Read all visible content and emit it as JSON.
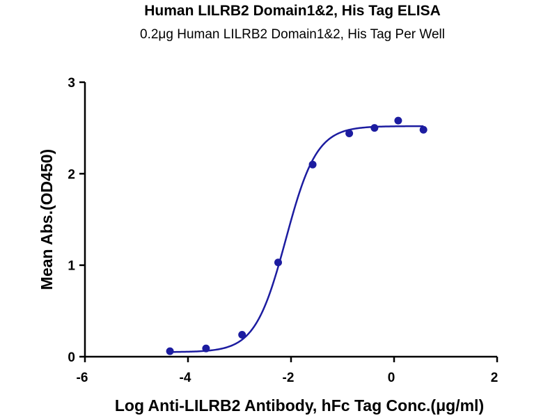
{
  "chart_data": {
    "type": "scatter",
    "title": "Human LILRB2 Domain1&2, His Tag ELISA",
    "subtitle": "0.2μg Human LILRB2 Domain1&2, His Tag Per Well",
    "xlabel": "Log Anti-LILRB2 Antibody, hFc Tag Conc.(μg/ml)",
    "ylabel": "Mean Abs.(OD450)",
    "xlim": [
      -6,
      2
    ],
    "ylim": [
      0,
      3
    ],
    "xticks": [
      "-6",
      "-4",
      "-2",
      "0",
      "2"
    ],
    "yticks": [
      "0",
      "1",
      "2",
      "3"
    ],
    "grid": false,
    "series": [
      {
        "x": [
          -4.35,
          -3.65,
          -2.95,
          -2.25,
          -1.58,
          -0.87,
          -0.38,
          0.08,
          0.57
        ],
        "y": [
          0.06,
          0.09,
          0.24,
          1.03,
          2.1,
          2.44,
          2.5,
          2.58,
          2.48
        ],
        "color": "#1c1ca0"
      }
    ],
    "fit_curve": {
      "model": "4PL",
      "bottom": 0.05,
      "top": 2.52,
      "logEC50": -2.1,
      "hill": 1.45,
      "x_range": [
        -4.35,
        0.57
      ],
      "color": "#1c1ca0"
    }
  }
}
